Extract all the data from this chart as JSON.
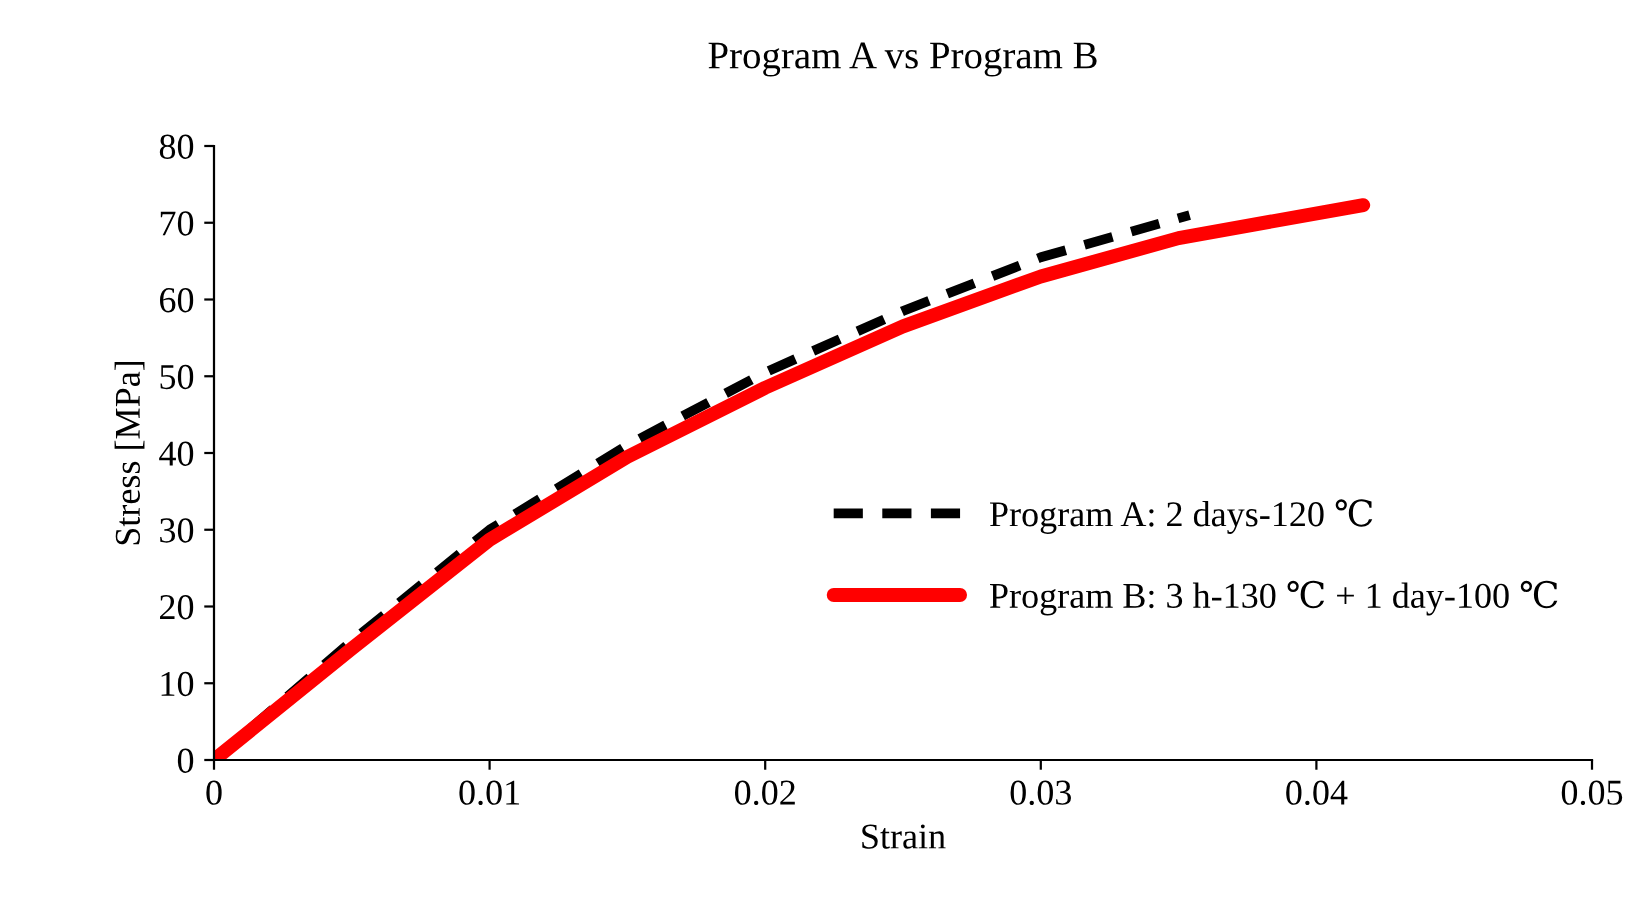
{
  "chart_data": {
    "type": "line",
    "title": "Program A vs Program B",
    "xlabel": "Strain",
    "ylabel": "Stress [MPa]",
    "xlim": [
      0,
      0.05
    ],
    "xticks": [
      0,
      0.01,
      0.02,
      0.03,
      0.04,
      0.05
    ],
    "ylim": [
      0,
      80
    ],
    "yticks": [
      0,
      10,
      20,
      30,
      40,
      50,
      60,
      70,
      80
    ],
    "grid": false,
    "legend": "right",
    "series": [
      {
        "name": "Program A: 2 days-120 ℃",
        "color": "#000000",
        "line_style": "dashed",
        "x": [
          0,
          0.005,
          0.01,
          0.015,
          0.02,
          0.025,
          0.03,
          0.0354
        ],
        "values": [
          0,
          15.5,
          30,
          41,
          50.5,
          58.5,
          65.5,
          71
        ]
      },
      {
        "name": "Program B: 3 h-130 ℃ + 1 day-100 ℃",
        "color": "#ff0000",
        "line_style": "solid",
        "x": [
          0,
          0.005,
          0.01,
          0.015,
          0.02,
          0.025,
          0.03,
          0.035,
          0.0417
        ],
        "values": [
          0,
          14.5,
          28.7,
          39.5,
          48.5,
          56.5,
          63,
          68,
          72.3
        ]
      }
    ]
  }
}
